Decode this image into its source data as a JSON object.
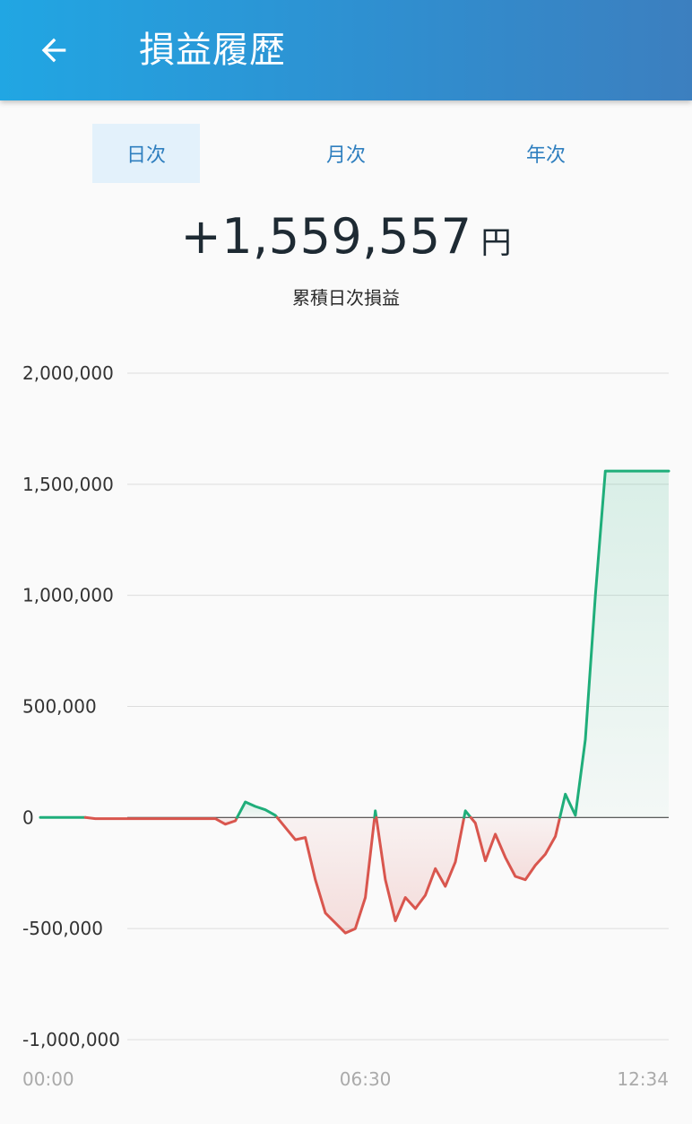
{
  "header": {
    "title": "損益履歴",
    "back_icon": "arrow-left-icon"
  },
  "tabs": [
    {
      "label": "日次",
      "active": true
    },
    {
      "label": "月次",
      "active": false
    },
    {
      "label": "年次",
      "active": false
    }
  ],
  "summary": {
    "value": "+1,559,557",
    "unit": "円",
    "label": "累積日次損益"
  },
  "colors": {
    "positive": "#1fae7a",
    "negative": "#d9564e",
    "accent": "#2f7fbf"
  },
  "chart_data": {
    "type": "line",
    "ylim": [
      -1000000,
      2000000
    ],
    "y_ticks": [
      {
        "value": 2000000,
        "label": "2,000,000"
      },
      {
        "value": 1500000,
        "label": "1,500,000"
      },
      {
        "value": 1000000,
        "label": "1,000,000"
      },
      {
        "value": 500000,
        "label": "500,000"
      },
      {
        "value": 0,
        "label": "0"
      },
      {
        "value": -500000,
        "label": "-500,000"
      },
      {
        "value": -1000000,
        "label": "-1,000,000"
      }
    ],
    "x_range": [
      "00:00",
      "12:34"
    ],
    "x_ticks": [
      {
        "time": "00:00",
        "label": "00:00"
      },
      {
        "time": "06:30",
        "label": "06:30"
      },
      {
        "time": "12:34",
        "label": "12:34"
      }
    ],
    "series": [
      {
        "x": [
          "00:00",
          "00:54",
          "01:06",
          "01:30",
          "01:54",
          "02:18",
          "02:30",
          "02:42",
          "03:06",
          "03:18",
          "03:30",
          "03:42",
          "03:54",
          "04:06",
          "04:18",
          "04:30",
          "04:42",
          "05:06",
          "05:18",
          "05:30",
          "05:42",
          "06:06",
          "06:18",
          "06:30",
          "06:42",
          "06:54",
          "07:06",
          "07:18",
          "07:30",
          "07:42",
          "07:54",
          "08:06",
          "08:18",
          "08:30",
          "08:42",
          "08:54",
          "09:06",
          "09:18",
          "09:30",
          "09:42",
          "09:54",
          "10:06",
          "10:18",
          "10:30",
          "10:42",
          "10:54",
          "11:06",
          "11:18",
          "11:30",
          "11:42",
          "11:54",
          "12:06",
          "12:18",
          "12:30",
          "12:34"
        ],
        "values": [
          0,
          0,
          -5000,
          -5000,
          -5000,
          -5000,
          -5000,
          -5000,
          -5000,
          -5000,
          -5000,
          -30000,
          -15000,
          70000,
          50000,
          35000,
          10000,
          -100000,
          -90000,
          -280000,
          -430000,
          -520000,
          -500000,
          -360000,
          30000,
          -280000,
          -465000,
          -360000,
          -410000,
          -350000,
          -230000,
          -310000,
          -200000,
          30000,
          -25000,
          -195000,
          -75000,
          -180000,
          -265000,
          -280000,
          -215000,
          -165000,
          -85000,
          105000,
          10000,
          350000,
          1000000,
          1559557,
          1559557,
          1559557,
          1559557,
          1559557,
          1559557,
          1559557,
          1559557
        ]
      }
    ]
  }
}
